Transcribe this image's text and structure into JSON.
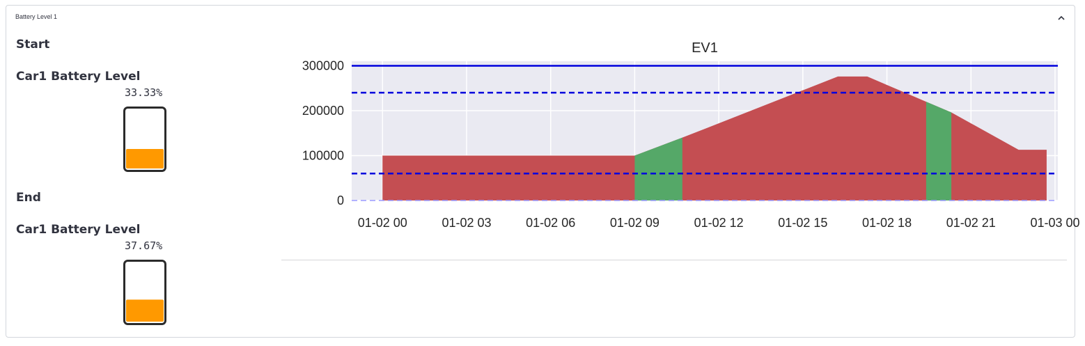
{
  "panel": {
    "title": "Battery Level 1",
    "collapse_icon": "chevron-up-icon"
  },
  "start": {
    "heading": "Start",
    "label": "Car1 Battery Level",
    "value": "33.33%",
    "level": 0.3333
  },
  "end": {
    "heading": "End",
    "label": "Car1 Battery Level",
    "value": "37.67%",
    "level": 0.3767
  },
  "colors": {
    "battery_fill": "#ff9900",
    "battery_border": "#2b2b2b",
    "discharge": "#c44e52",
    "charge": "#55a868",
    "capacity_line": "#0000dd",
    "plot_bg": "#eaeaf2"
  },
  "chart_data": {
    "type": "area",
    "title": "EV1",
    "xlabel": "",
    "ylabel": "",
    "x_ticks": [
      "01-02 00",
      "01-02 03",
      "01-02 06",
      "01-02 09",
      "01-02 12",
      "01-02 15",
      "01-02 18",
      "01-02 21",
      "01-03 00"
    ],
    "y_ticks": [
      "0",
      "100000",
      "200000",
      "300000"
    ],
    "ylim": [
      0,
      310000
    ],
    "xlim_hours": [
      -1.1,
      24.1
    ],
    "grid": true,
    "series": [
      {
        "color": "discharge",
        "points": [
          [
            0,
            100000
          ],
          [
            9,
            100000
          ],
          [
            10.7,
            140000
          ],
          [
            16.25,
            276000
          ],
          [
            17.3,
            276000
          ],
          [
            19.4,
            220000
          ],
          [
            20.3,
            196000
          ],
          [
            22.7,
            113000
          ],
          [
            23.7,
            113000
          ]
        ]
      }
    ],
    "charge_intervals": [
      [
        9,
        10.7
      ],
      [
        19.4,
        20.3
      ]
    ],
    "hlines": [
      {
        "y": 300000,
        "style": "solid"
      },
      {
        "y": 240000,
        "style": "dashed"
      },
      {
        "y": 60000,
        "style": "dashed"
      },
      {
        "y": 0,
        "style": "dashed-light"
      }
    ]
  }
}
